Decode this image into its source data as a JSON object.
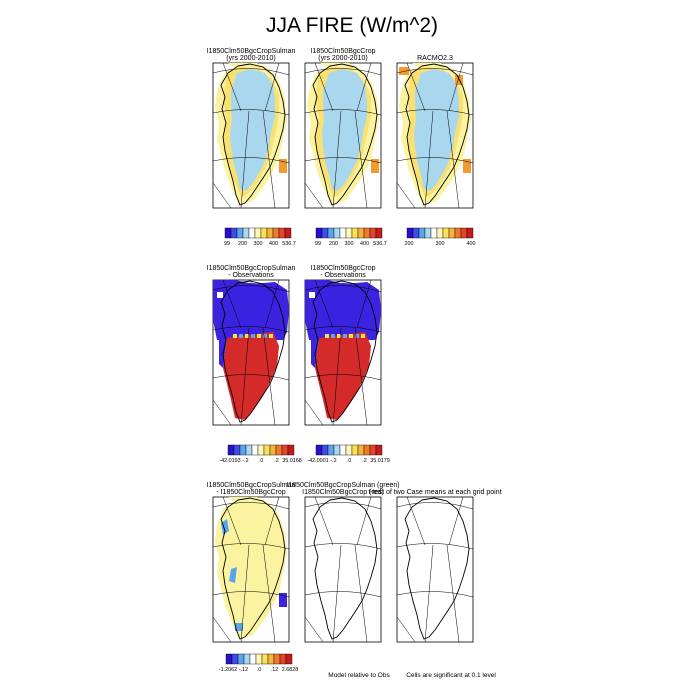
{
  "title": "JJA FIRE (W/m^2)",
  "colors": {
    "land": "#a9d8ee",
    "ice": "#a9d8ee",
    "mid": "#fbf3a0",
    "warm": "#f7d24a",
    "orange": "#f39a2a",
    "deep_red": "#d42a2a",
    "blue": "#3b23e0",
    "outline": "#000000"
  },
  "palette": [
    "#2b10c9",
    "#3e4ee6",
    "#5aa4f0",
    "#a9d8ee",
    "#ffffff",
    "#fff6b8",
    "#f7e25a",
    "#f5b23c",
    "#ef7a2a",
    "#e2452b",
    "#c41b1b"
  ],
  "panels": [
    {
      "id": "p1",
      "title": [
        "I1850Clm50BgcCropSulman",
        "(yrs 2000-2010)"
      ],
      "style": "model"
    },
    {
      "id": "p2",
      "title": [
        "I1850Clm50BgcCrop",
        "(yrs 2000-2010)"
      ],
      "style": "model"
    },
    {
      "id": "p3",
      "title": [
        "RACMO2.3"
      ],
      "style": "obs"
    },
    {
      "id": "p4",
      "title": [
        "I1850Clm50BgcCropSulman",
        "- Observations"
      ],
      "style": "diff"
    },
    {
      "id": "p5",
      "title": [
        "I1850Clm50BgcCrop",
        "- Observations"
      ],
      "style": "diff"
    },
    {
      "id": "p6",
      "title": [
        "I1850Clm50BgcCropSulman",
        "- I1850Clm50BgcCrop"
      ],
      "style": "casediff"
    },
    {
      "id": "p7",
      "title": [
        "I1850Clm50BgcCropSulman (green)",
        "I1850Clm50BgcCrop (red)"
      ],
      "style": "empty"
    },
    {
      "id": "p8",
      "title": [
        "t-test of two Case means at each grid point"
      ],
      "style": "empty"
    }
  ],
  "colorbars": [
    {
      "id": "cb1",
      "labels": [
        "99",
        "200",
        "300",
        "400",
        "536.7"
      ]
    },
    {
      "id": "cb2",
      "labels": [
        "99",
        "200",
        "300",
        "400",
        "536.7"
      ]
    },
    {
      "id": "cb3",
      "labels": [
        "200",
        "300",
        "400"
      ]
    },
    {
      "id": "cb4",
      "labels": [
        "-42.0193",
        "-.2",
        ".0",
        ".2",
        "35.0168"
      ]
    },
    {
      "id": "cb5",
      "labels": [
        "-42.0001",
        "-.2",
        ".0",
        ".2",
        "35.0179"
      ]
    },
    {
      "id": "cb6",
      "labels": [
        "-1.2062",
        "-.12",
        ".0",
        ".12",
        "2.6828"
      ]
    }
  ],
  "notes": {
    "model_relative": "Model relative to Obs",
    "significance": "Cells are significant at 0.1 level"
  },
  "chart_data": {
    "type": "heatmap",
    "title": "JJA FIRE (W/m^2)",
    "variable": "FIRE",
    "season": "JJA",
    "units": "W/m^2",
    "panels": [
      {
        "name": "I1850Clm50BgcCropSulman (yrs 2000-2010)",
        "colorbar_labels": [
          99,
          200,
          300,
          400,
          536.7
        ]
      },
      {
        "name": "I1850Clm50BgcCrop (yrs 2000-2010)",
        "colorbar_labels": [
          99,
          200,
          300,
          400,
          536.7
        ]
      },
      {
        "name": "RACMO2.3",
        "colorbar_labels": [
          200,
          300,
          400
        ]
      },
      {
        "name": "I1850Clm50BgcCropSulman - Observations",
        "colorbar_labels": [
          -42.0193,
          -0.2,
          0.0,
          0.2,
          35.0168
        ]
      },
      {
        "name": "I1850Clm50BgcCrop - Observations",
        "colorbar_labels": [
          -42.0001,
          -0.2,
          0.0,
          0.2,
          35.0179
        ]
      },
      {
        "name": "I1850Clm50BgcCropSulman - I1850Clm50BgcCrop",
        "colorbar_labels": [
          -1.2062,
          -0.12,
          0.0,
          0.12,
          2.6828
        ]
      },
      {
        "name": "I1850Clm50BgcCropSulman (green) I1850Clm50BgcCrop (red)"
      },
      {
        "name": "t-test of two Case means at each grid point"
      }
    ]
  }
}
